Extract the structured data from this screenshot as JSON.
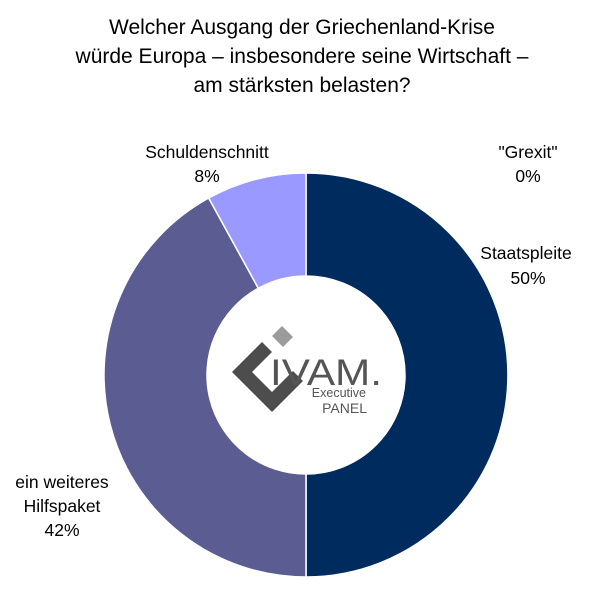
{
  "chart_data": {
    "type": "pie",
    "donut": true,
    "title_lines": [
      "Welcher Ausgang der Griechenland-Krise",
      "würde Europa – insbesondere seine Wirtschaft –",
      "am stärksten belasten?"
    ],
    "slices": [
      {
        "label": "Staatspleite",
        "value_label": "50%",
        "value": 50,
        "color": "#002b5e"
      },
      {
        "label": "ein weiteres Hilfspaket",
        "label_lines": [
          "ein weiteres",
          "Hilfspaket"
        ],
        "value_label": "42%",
        "value": 42,
        "color": "#5b5c91"
      },
      {
        "label": "Schuldenschnitt",
        "value_label": "8%",
        "value": 8,
        "color": "#9999ff"
      },
      {
        "label": "\"Grexit\"",
        "value_label": "0%",
        "value": 0,
        "color": "#cccccc"
      }
    ],
    "legend": "none"
  },
  "logo": {
    "main": "IVAM.",
    "line1": "Executive",
    "line2": "PANEL",
    "colors": {
      "dark": "#4d4d4d",
      "light": "#9b9b9b"
    }
  }
}
